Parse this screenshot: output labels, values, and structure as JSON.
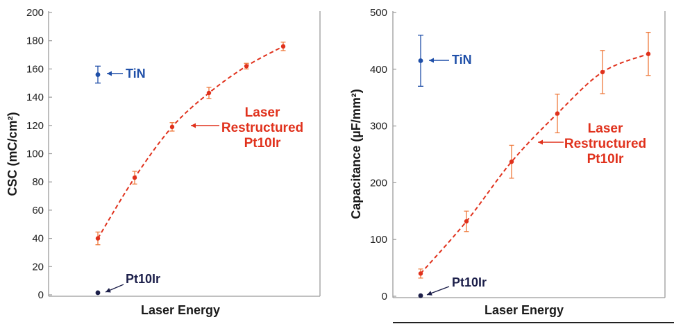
{
  "colors": {
    "laser": "#e0311c",
    "laser_err": "#ef7a3c",
    "tin": "#1f4fa8",
    "pt": "#1c1f4a",
    "axis": "#9a9a9a",
    "text": "#1a1a1a"
  },
  "chart_data": [
    {
      "type": "scatter",
      "xlabel": "Laser Energy",
      "ylabel": "CSC (mC/cm²)",
      "ylim": [
        0,
        200
      ],
      "yticks": [
        0,
        20,
        40,
        60,
        80,
        100,
        120,
        140,
        160,
        180,
        200
      ],
      "grid": false,
      "series": [
        {
          "name": "Laser Restructured Pt10Ir",
          "x": [
            1,
            2,
            3,
            4,
            5,
            6
          ],
          "y": [
            40,
            83,
            119,
            143,
            162,
            176
          ],
          "err": [
            4.5,
            4.5,
            3,
            4,
            2,
            3
          ],
          "style": "dashed-line"
        },
        {
          "name": "TiN",
          "x": [
            1
          ],
          "y": [
            156
          ],
          "err": [
            6
          ]
        },
        {
          "name": "Pt10Ir",
          "x": [
            1
          ],
          "y": [
            1.5
          ],
          "err": [
            0
          ]
        }
      ],
      "annotations": [
        {
          "label": "TiN",
          "lines": [
            "TiN"
          ]
        },
        {
          "label": "Laser Restructured Pt10Ir",
          "lines": [
            "Laser",
            "Restructured",
            "Pt10Ir"
          ]
        },
        {
          "label": "Pt10Ir",
          "lines": [
            "Pt10Ir"
          ]
        }
      ]
    },
    {
      "type": "scatter",
      "xlabel": "Laser Energy",
      "ylabel": "Capacitance (µF/mm²)",
      "ylim": [
        0,
        500
      ],
      "yticks": [
        0,
        100,
        200,
        300,
        400,
        500
      ],
      "grid": false,
      "series": [
        {
          "name": "Laser Restructured Pt10Ir",
          "x": [
            1,
            2,
            3,
            4,
            5,
            6
          ],
          "y": [
            40,
            132,
            237,
            322,
            395,
            427
          ],
          "err": [
            8,
            18,
            29,
            34,
            38,
            38
          ],
          "style": "dashed-line"
        },
        {
          "name": "TiN",
          "x": [
            1
          ],
          "y": [
            415
          ],
          "err": [
            45
          ]
        },
        {
          "name": "Pt10Ir",
          "x": [
            1
          ],
          "y": [
            1
          ],
          "err": [
            0
          ]
        }
      ],
      "annotations": [
        {
          "label": "TiN",
          "lines": [
            "TiN"
          ]
        },
        {
          "label": "Laser Restructured Pt10Ir",
          "lines": [
            "Laser",
            "Restructured",
            "Pt10Ir"
          ]
        },
        {
          "label": "Pt10Ir",
          "lines": [
            "Pt10Ir"
          ]
        }
      ]
    }
  ]
}
